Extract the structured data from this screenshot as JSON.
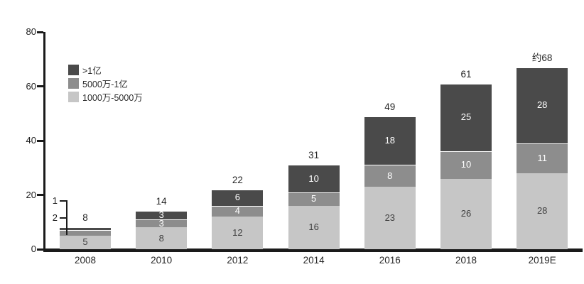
{
  "chart_data": {
    "type": "bar",
    "stacked": true,
    "title": "",
    "categories": [
      "2008",
      "2010",
      "2012",
      "2014",
      "2016",
      "2018",
      "2019E"
    ],
    "series": [
      {
        "name": "1000万-5000万",
        "color": "#c6c6c6",
        "text_color": "#3f3f3f",
        "values": [
          5,
          8,
          12,
          16,
          23,
          26,
          28
        ],
        "labels": [
          "5",
          "8",
          "12",
          "16",
          "23",
          "26",
          "28"
        ]
      },
      {
        "name": "5000万-1亿",
        "color": "#8d8d8d",
        "text_color": "#ffffff",
        "values": [
          2,
          3,
          4,
          5,
          8,
          10,
          11
        ],
        "labels": [
          "",
          "3",
          "4",
          "5",
          "8",
          "10",
          "11"
        ]
      },
      {
        "name": ">1亿",
        "color": "#4a4a4a",
        "text_color": "#ffffff",
        "values": [
          1,
          3,
          6,
          10,
          18,
          25,
          28
        ],
        "labels": [
          "",
          "3",
          "6",
          "10",
          "18",
          "25",
          "28"
        ]
      }
    ],
    "totals": [
      "8",
      "14",
      "22",
      "31",
      "49",
      "61",
      "约68"
    ],
    "ylim": [
      0,
      80
    ],
    "y_ticks": [
      "0",
      "20",
      "40",
      "60",
      "80"
    ],
    "grid": false,
    "legend_position": "upper-left-inside",
    "legend": [
      {
        "label": ">1亿",
        "color": "#4a4a4a"
      },
      {
        "label": "5000万-1亿",
        "color": "#8d8d8d"
      },
      {
        "label": "1000万-5000万",
        "color": "#c6c6c6"
      }
    ],
    "annotations": [
      {
        "label": "1",
        "target_series": ">1亿",
        "target_category": "2008",
        "target_value": 1
      },
      {
        "label": "2",
        "target_series": "5000万-1亿",
        "target_category": "2008",
        "target_value": 2
      }
    ],
    "axis_color": "#1a1a1a"
  }
}
